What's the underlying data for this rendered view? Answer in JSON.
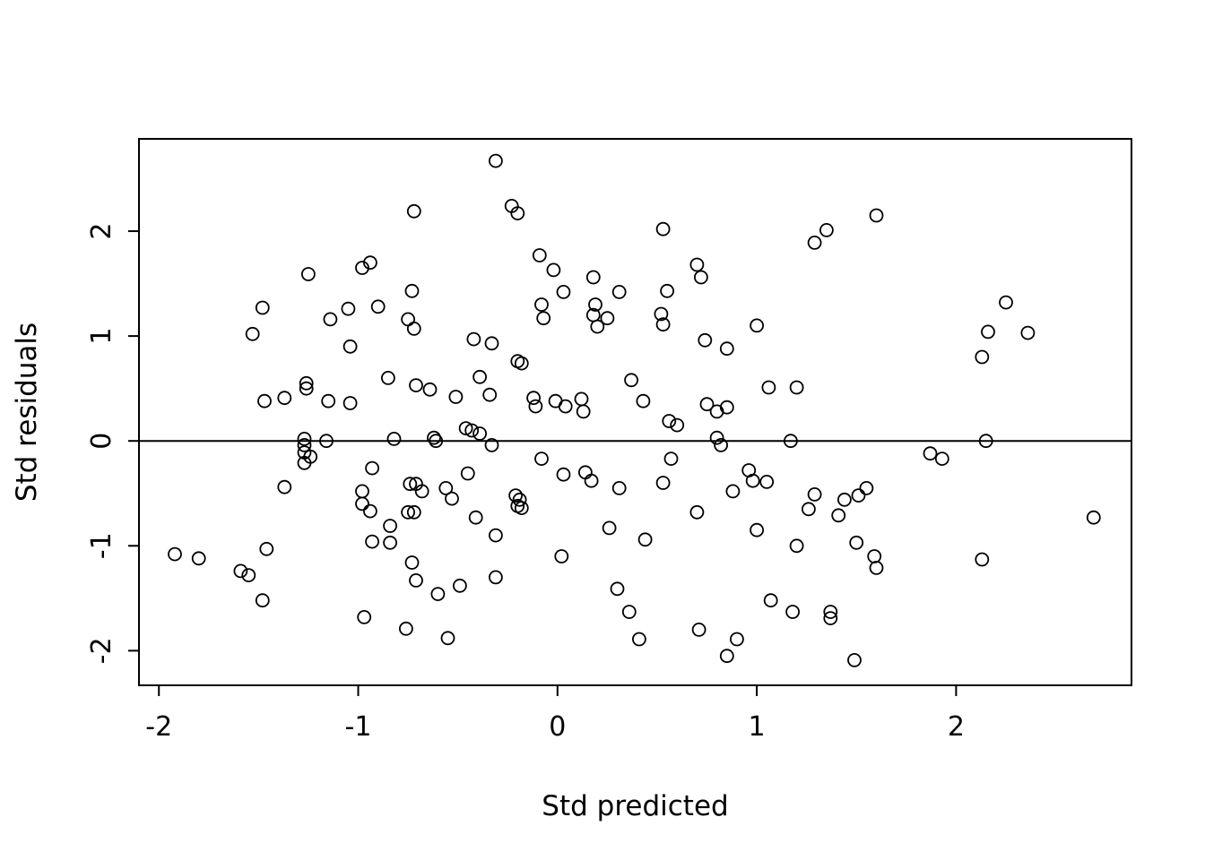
{
  "chart_data": {
    "type": "scatter",
    "title": "",
    "xlabel": "Std predicted",
    "ylabel": "Std residuals",
    "xlim": [
      -2.1,
      2.88
    ],
    "ylim": [
      -2.33,
      2.88
    ],
    "x_ticks": [
      -2,
      -1,
      0,
      1,
      2
    ],
    "y_ticks": [
      -2,
      -1,
      0,
      1,
      2
    ],
    "hline": 0,
    "grid": false,
    "legend": "none",
    "marker": "open-circle",
    "marker_radius": 7,
    "colors": {
      "points": "#000000",
      "axis": "#000000",
      "background": "#ffffff"
    },
    "points": [
      [
        -0.31,
        2.67
      ],
      [
        -0.23,
        2.24
      ],
      [
        -0.2,
        2.17
      ],
      [
        -0.72,
        2.19
      ],
      [
        0.53,
        2.02
      ],
      [
        1.35,
        2.01
      ],
      [
        1.29,
        1.89
      ],
      [
        1.6,
        2.15
      ],
      [
        -0.09,
        1.77
      ],
      [
        -0.02,
        1.63
      ],
      [
        0.18,
        1.56
      ],
      [
        0.7,
        1.68
      ],
      [
        0.72,
        1.56
      ],
      [
        -1.25,
        1.59
      ],
      [
        -0.98,
        1.65
      ],
      [
        -0.94,
        1.7
      ],
      [
        -0.9,
        1.28
      ],
      [
        -0.73,
        1.43
      ],
      [
        0.03,
        1.42
      ],
      [
        0.31,
        1.42
      ],
      [
        0.55,
        1.43
      ],
      [
        -1.48,
        1.27
      ],
      [
        -1.05,
        1.26
      ],
      [
        -0.08,
        1.3
      ],
      [
        -0.07,
        1.17
      ],
      [
        0.19,
        1.3
      ],
      [
        0.18,
        1.2
      ],
      [
        0.2,
        1.09
      ],
      [
        0.25,
        1.17
      ],
      [
        0.52,
        1.21
      ],
      [
        0.53,
        1.11
      ],
      [
        -1.14,
        1.16
      ],
      [
        -0.75,
        1.16
      ],
      [
        -0.72,
        1.07
      ],
      [
        2.25,
        1.32
      ],
      [
        2.16,
        1.04
      ],
      [
        2.36,
        1.03
      ],
      [
        -1.53,
        1.02
      ],
      [
        1.0,
        1.1
      ],
      [
        0.74,
        0.96
      ],
      [
        -0.42,
        0.97
      ],
      [
        -0.33,
        0.93
      ],
      [
        -1.04,
        0.9
      ],
      [
        0.85,
        0.88
      ],
      [
        2.13,
        0.8
      ],
      [
        -0.2,
        0.76
      ],
      [
        -0.18,
        0.74
      ],
      [
        -0.39,
        0.61
      ],
      [
        -0.85,
        0.6
      ],
      [
        -0.71,
        0.53
      ],
      [
        -0.64,
        0.49
      ],
      [
        -1.26,
        0.55
      ],
      [
        -1.26,
        0.5
      ],
      [
        1.06,
        0.51
      ],
      [
        1.2,
        0.51
      ],
      [
        -0.51,
        0.42
      ],
      [
        -0.34,
        0.44
      ],
      [
        -0.12,
        0.41
      ],
      [
        -0.11,
        0.33
      ],
      [
        -0.01,
        0.38
      ],
      [
        0.04,
        0.33
      ],
      [
        0.12,
        0.4
      ],
      [
        0.13,
        0.28
      ],
      [
        -1.47,
        0.38
      ],
      [
        -1.37,
        0.41
      ],
      [
        -1.15,
        0.38
      ],
      [
        -1.04,
        0.36
      ],
      [
        0.37,
        0.58
      ],
      [
        0.43,
        0.38
      ],
      [
        0.75,
        0.35
      ],
      [
        0.8,
        0.28
      ],
      [
        0.85,
        0.32
      ],
      [
        0.56,
        0.19
      ],
      [
        0.6,
        0.15
      ],
      [
        -0.46,
        0.12
      ],
      [
        -0.43,
        0.1
      ],
      [
        -0.39,
        0.07
      ],
      [
        -0.62,
        0.03
      ],
      [
        -0.61,
        0.0
      ],
      [
        -0.82,
        0.02
      ],
      [
        -1.27,
        0.02
      ],
      [
        -1.27,
        -0.04
      ],
      [
        -1.27,
        -0.11
      ],
      [
        -1.24,
        -0.15
      ],
      [
        -1.27,
        -0.21
      ],
      [
        -1.16,
        0.0
      ],
      [
        -0.33,
        -0.04
      ],
      [
        0.8,
        0.03
      ],
      [
        0.82,
        -0.04
      ],
      [
        1.17,
        0.0
      ],
      [
        2.15,
        0.0
      ],
      [
        1.87,
        -0.12
      ],
      [
        1.93,
        -0.17
      ],
      [
        -0.08,
        -0.17
      ],
      [
        0.03,
        -0.32
      ],
      [
        0.14,
        -0.3
      ],
      [
        0.17,
        -0.38
      ],
      [
        0.96,
        -0.28
      ],
      [
        0.98,
        -0.38
      ],
      [
        1.05,
        -0.39
      ],
      [
        0.53,
        -0.4
      ],
      [
        0.57,
        -0.17
      ],
      [
        -1.37,
        -0.44
      ],
      [
        -0.93,
        -0.26
      ],
      [
        -0.98,
        -0.48
      ],
      [
        -0.74,
        -0.41
      ],
      [
        -0.71,
        -0.41
      ],
      [
        -0.68,
        -0.48
      ],
      [
        -0.56,
        -0.45
      ],
      [
        -0.53,
        -0.55
      ],
      [
        -0.45,
        -0.31
      ],
      [
        -0.21,
        -0.52
      ],
      [
        -0.19,
        -0.56
      ],
      [
        -0.2,
        -0.62
      ],
      [
        -0.18,
        -0.64
      ],
      [
        0.31,
        -0.45
      ],
      [
        0.88,
        -0.48
      ],
      [
        1.29,
        -0.51
      ],
      [
        1.55,
        -0.45
      ],
      [
        1.44,
        -0.56
      ],
      [
        1.51,
        -0.52
      ],
      [
        -0.98,
        -0.6
      ],
      [
        -0.94,
        -0.67
      ],
      [
        -0.75,
        -0.68
      ],
      [
        -0.72,
        -0.68
      ],
      [
        -0.41,
        -0.73
      ],
      [
        0.7,
        -0.68
      ],
      [
        1.0,
        -0.85
      ],
      [
        1.26,
        -0.65
      ],
      [
        1.41,
        -0.71
      ],
      [
        2.69,
        -0.73
      ],
      [
        -0.84,
        -0.81
      ],
      [
        -0.31,
        -0.9
      ],
      [
        0.26,
        -0.83
      ],
      [
        0.44,
        -0.94
      ],
      [
        -0.93,
        -0.96
      ],
      [
        -0.84,
        -0.97
      ],
      [
        1.5,
        -0.97
      ],
      [
        -1.46,
        -1.03
      ],
      [
        -1.92,
        -1.08
      ],
      [
        -1.8,
        -1.12
      ],
      [
        0.02,
        -1.1
      ],
      [
        1.2,
        -1.0
      ],
      [
        1.59,
        -1.1
      ],
      [
        2.13,
        -1.13
      ],
      [
        -0.73,
        -1.16
      ],
      [
        1.6,
        -1.21
      ],
      [
        -1.59,
        -1.24
      ],
      [
        -1.55,
        -1.28
      ],
      [
        -0.71,
        -1.33
      ],
      [
        -0.31,
        -1.3
      ],
      [
        -0.49,
        -1.38
      ],
      [
        0.3,
        -1.41
      ],
      [
        -0.6,
        -1.46
      ],
      [
        -1.48,
        -1.52
      ],
      [
        1.07,
        -1.52
      ],
      [
        0.36,
        -1.63
      ],
      [
        1.18,
        -1.63
      ],
      [
        1.37,
        -1.63
      ],
      [
        1.37,
        -1.69
      ],
      [
        -0.97,
        -1.68
      ],
      [
        -0.76,
        -1.79
      ],
      [
        0.71,
        -1.8
      ],
      [
        -0.55,
        -1.88
      ],
      [
        0.41,
        -1.89
      ],
      [
        0.9,
        -1.89
      ],
      [
        0.85,
        -2.05
      ],
      [
        1.49,
        -2.09
      ]
    ]
  }
}
